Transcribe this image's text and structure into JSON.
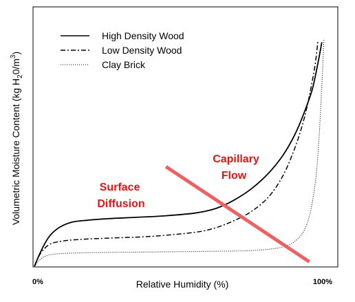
{
  "chart_data": {
    "type": "line",
    "title": "",
    "xlabel": "Relative Humidity (%)",
    "ylabel": "Volumetric Moisture Content (kg H20/m3)",
    "ylabel_parts": {
      "pre": "Volumetric Moisture Content (kg H",
      "sub": "2",
      "mid": "0/m",
      "sup": "3",
      "post": ")"
    },
    "xlim": [
      0,
      100
    ],
    "ylim": [
      0,
      100
    ],
    "x_tick_labels": [
      "0%",
      "100%"
    ],
    "grid": false,
    "legend_position": "top-left",
    "series": [
      {
        "name": "High Density Wood",
        "style": "solid",
        "color": "#000000",
        "x": [
          0,
          2,
          4,
          6,
          9,
          13,
          18,
          25,
          35,
          45,
          55,
          62,
          68,
          74,
          80,
          85,
          89,
          92,
          95,
          97,
          98.3
        ],
        "y": [
          0,
          6,
          11,
          14.5,
          17.5,
          19.5,
          20.3,
          21,
          21.6,
          22.3,
          23.5,
          25.5,
          29,
          34,
          41,
          49,
          58,
          67,
          78,
          90,
          99
        ]
      },
      {
        "name": "Low Density Wood",
        "style": "dash-dot",
        "color": "#000000",
        "x": [
          0,
          2,
          5,
          9,
          15,
          25,
          40,
          55,
          62,
          68,
          74,
          80,
          85,
          89,
          92,
          94,
          96,
          97
        ],
        "y": [
          0,
          5.5,
          9.5,
          11,
          11.8,
          12.4,
          13.2,
          15,
          17,
          20,
          24,
          30.5,
          40,
          52,
          64,
          75,
          89,
          100
        ]
      },
      {
        "name": "Clay Brick",
        "style": "dotted",
        "color": "#000000",
        "x": [
          0,
          3,
          8,
          20,
          40,
          60,
          75,
          85,
          90,
          93,
          95,
          96.5,
          97.5,
          98.3,
          99
        ],
        "y": [
          0,
          4,
          5.5,
          6,
          6.3,
          6.6,
          7,
          8.5,
          12,
          18,
          28,
          42,
          60,
          80,
          100
        ]
      }
    ],
    "annotations": [
      {
        "line1": "Surface",
        "line2": "Diffusion",
        "color": "#ee1111"
      },
      {
        "line1": "Capillary",
        "line2": "Flow",
        "color": "#ee1111"
      }
    ],
    "divider_line": {
      "color": "#f06060",
      "x": [
        45,
        94
      ],
      "y": [
        44,
        2
      ]
    }
  }
}
